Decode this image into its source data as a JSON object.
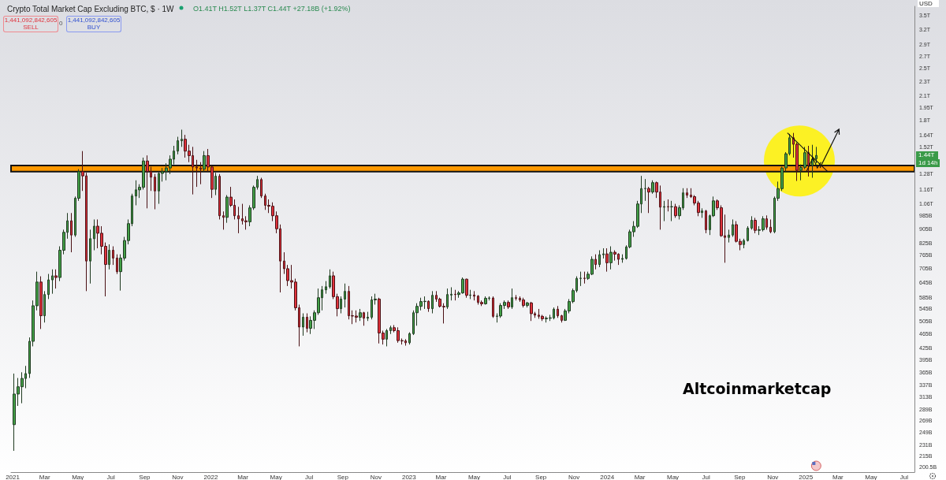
{
  "chart_data": {
    "type": "candlestick",
    "title": "Crypto Total Market Cap Excluding BTC, $ · 1W",
    "subtitle": "O1.41T H1.52T L1.37T C1.44T +27.18B (+1.92%)",
    "log": true,
    "grid": false,
    "ylim": [
      194000000000.0,
      3700000000000.0
    ],
    "yticks": [
      {
        "value": 200500000000.0,
        "label": "200.5B"
      },
      {
        "value": 215000000000.0,
        "label": "215B"
      },
      {
        "value": 231000000000.0,
        "label": "231B"
      },
      {
        "value": 249000000000.0,
        "label": "249B"
      },
      {
        "value": 269000000000.0,
        "label": "269B"
      },
      {
        "value": 289000000000.0,
        "label": "289B"
      },
      {
        "value": 313000000000.0,
        "label": "313B"
      },
      {
        "value": 337000000000.0,
        "label": "337B"
      },
      {
        "value": 365000000000.0,
        "label": "365B"
      },
      {
        "value": 395000000000.0,
        "label": "395B"
      },
      {
        "value": 425000000000.0,
        "label": "425B"
      },
      {
        "value": 465000000000.0,
        "label": "465B"
      },
      {
        "value": 505000000000.0,
        "label": "505B"
      },
      {
        "value": 545000000000.0,
        "label": "545B"
      },
      {
        "value": 585000000000.0,
        "label": "585B"
      },
      {
        "value": 645000000000.0,
        "label": "645B"
      },
      {
        "value": 705000000000.0,
        "label": "705B"
      },
      {
        "value": 765000000000.0,
        "label": "765B"
      },
      {
        "value": 825000000000.0,
        "label": "825B"
      },
      {
        "value": 905000000000.0,
        "label": "905B"
      },
      {
        "value": 985000000000.0,
        "label": "985B"
      },
      {
        "value": 1060000000000.0,
        "label": "1.06T"
      },
      {
        "value": 1160000000000.0,
        "label": "1.16T"
      },
      {
        "value": 1280000000000.0,
        "label": "1.28T"
      },
      {
        "value": 1520000000000.0,
        "label": "1.52T"
      },
      {
        "value": 1640000000000.0,
        "label": "1.64T"
      },
      {
        "value": 1800000000000.0,
        "label": "1.8T"
      },
      {
        "value": 1950000000000.0,
        "label": "1.95T"
      },
      {
        "value": 2100000000000.0,
        "label": "2.1T"
      },
      {
        "value": 2300000000000.0,
        "label": "2.3T"
      },
      {
        "value": 2500000000000.0,
        "label": "2.5T"
      },
      {
        "value": 2700000000000.0,
        "label": "2.7T"
      },
      {
        "value": 2900000000000.0,
        "label": "2.9T"
      },
      {
        "value": 3200000000000.0,
        "label": "3.2T"
      },
      {
        "value": 3500000000000.0,
        "label": "3.5T"
      }
    ],
    "xlim": [
      "2020-12-29",
      "2025-07-20"
    ],
    "xticks": [
      {
        "value": "2021-01-01",
        "label": "2021"
      },
      {
        "value": "2021-03-01",
        "label": "Mar"
      },
      {
        "value": "2021-05-01",
        "label": "May"
      },
      {
        "value": "2021-07-01",
        "label": "Jul"
      },
      {
        "value": "2021-09-01",
        "label": "Sep"
      },
      {
        "value": "2021-11-01",
        "label": "Nov"
      },
      {
        "value": "2022-01-01",
        "label": "2022"
      },
      {
        "value": "2022-03-01",
        "label": "Mar"
      },
      {
        "value": "2022-05-01",
        "label": "May"
      },
      {
        "value": "2022-07-01",
        "label": "Jul"
      },
      {
        "value": "2022-09-01",
        "label": "Sep"
      },
      {
        "value": "2022-11-01",
        "label": "Nov"
      },
      {
        "value": "2023-01-01",
        "label": "2023"
      },
      {
        "value": "2023-03-01",
        "label": "Mar"
      },
      {
        "value": "2023-05-01",
        "label": "May"
      },
      {
        "value": "2023-07-01",
        "label": "Jul"
      },
      {
        "value": "2023-09-01",
        "label": "Sep"
      },
      {
        "value": "2023-11-01",
        "label": "Nov"
      },
      {
        "value": "2024-01-01",
        "label": "2024"
      },
      {
        "value": "2024-03-01",
        "label": "Mar"
      },
      {
        "value": "2024-05-01",
        "label": "May"
      },
      {
        "value": "2024-07-01",
        "label": "Jul"
      },
      {
        "value": "2024-09-01",
        "label": "Sep"
      },
      {
        "value": "2024-11-01",
        "label": "Nov"
      },
      {
        "value": "2025-01-01",
        "label": "2025"
      },
      {
        "value": "2025-03-01",
        "label": "Mar"
      },
      {
        "value": "2025-05-01",
        "label": "May"
      },
      {
        "value": "2025-07-01",
        "label": "Jul"
      }
    ],
    "bands": [
      {
        "axis": "y",
        "from": 1300000000000.0,
        "to": 1350000000000.0,
        "color": "#ff9800"
      }
    ],
    "annotations": [
      "1,441,092,842,605",
      "SELL",
      "0",
      "1,441,092,842,605",
      "BUY",
      "USD",
      {
        "text": "1.44T",
        "y": 1440000000000.0
      },
      "1d 14h",
      "Altcoinmarketcap"
    ],
    "x": [
      "2021-01-04",
      "2021-01-11",
      "2021-01-18",
      "2021-01-25",
      "2021-02-01",
      "2021-02-08",
      "2021-02-15",
      "2021-02-22",
      "2021-03-01",
      "2021-03-08",
      "2021-03-15",
      "2021-03-22",
      "2021-03-29",
      "2021-04-05",
      "2021-04-12",
      "2021-04-19",
      "2021-04-26",
      "2021-05-03",
      "2021-05-10",
      "2021-05-17",
      "2021-05-24",
      "2021-05-31",
      "2021-06-07",
      "2021-06-14",
      "2021-06-21",
      "2021-06-28",
      "2021-07-05",
      "2021-07-12",
      "2021-07-19",
      "2021-07-26",
      "2021-08-02",
      "2021-08-09",
      "2021-08-16",
      "2021-08-23",
      "2021-08-30",
      "2021-09-06",
      "2021-09-13",
      "2021-09-20",
      "2021-09-27",
      "2021-10-04",
      "2021-10-11",
      "2021-10-18",
      "2021-10-25",
      "2021-11-01",
      "2021-11-08",
      "2021-11-15",
      "2021-11-22",
      "2021-11-29",
      "2021-12-06",
      "2021-12-13",
      "2021-12-20",
      "2021-12-27",
      "2022-01-03",
      "2022-01-10",
      "2022-01-17",
      "2022-01-24",
      "2022-01-31",
      "2022-02-07",
      "2022-02-14",
      "2022-02-21",
      "2022-02-28",
      "2022-03-07",
      "2022-03-14",
      "2022-03-21",
      "2022-03-28",
      "2022-04-04",
      "2022-04-11",
      "2022-04-18",
      "2022-04-25",
      "2022-05-02",
      "2022-05-09",
      "2022-05-16",
      "2022-05-23",
      "2022-05-30",
      "2022-06-06",
      "2022-06-13",
      "2022-06-20",
      "2022-06-27",
      "2022-07-04",
      "2022-07-11",
      "2022-07-18",
      "2022-07-25",
      "2022-08-01",
      "2022-08-08",
      "2022-08-15",
      "2022-08-22",
      "2022-08-29",
      "2022-09-05",
      "2022-09-12",
      "2022-09-19",
      "2022-09-26",
      "2022-10-03",
      "2022-10-10",
      "2022-10-17",
      "2022-10-24",
      "2022-10-31",
      "2022-11-07",
      "2022-11-14",
      "2022-11-21",
      "2022-11-28",
      "2022-12-05",
      "2022-12-12",
      "2022-12-19",
      "2022-12-26",
      "2023-01-02",
      "2023-01-09",
      "2023-01-16",
      "2023-01-23",
      "2023-01-30",
      "2023-02-06",
      "2023-02-13",
      "2023-02-20",
      "2023-02-27",
      "2023-03-06",
      "2023-03-13",
      "2023-03-20",
      "2023-03-27",
      "2023-04-03",
      "2023-04-10",
      "2023-04-17",
      "2023-04-24",
      "2023-05-01",
      "2023-05-08",
      "2023-05-15",
      "2023-05-22",
      "2023-05-29",
      "2023-06-05",
      "2023-06-12",
      "2023-06-19",
      "2023-06-26",
      "2023-07-03",
      "2023-07-10",
      "2023-07-17",
      "2023-07-24",
      "2023-07-31",
      "2023-08-07",
      "2023-08-14",
      "2023-08-21",
      "2023-08-28",
      "2023-09-04",
      "2023-09-11",
      "2023-09-18",
      "2023-09-25",
      "2023-10-02",
      "2023-10-09",
      "2023-10-16",
      "2023-10-23",
      "2023-10-30",
      "2023-11-06",
      "2023-11-13",
      "2023-11-20",
      "2023-11-27",
      "2023-12-04",
      "2023-12-11",
      "2023-12-18",
      "2023-12-25",
      "2024-01-01",
      "2024-01-08",
      "2024-01-15",
      "2024-01-22",
      "2024-01-29",
      "2024-02-05",
      "2024-02-12",
      "2024-02-19",
      "2024-02-26",
      "2024-03-04",
      "2024-03-11",
      "2024-03-18",
      "2024-03-25",
      "2024-04-01",
      "2024-04-08",
      "2024-04-15",
      "2024-04-22",
      "2024-04-29",
      "2024-05-06",
      "2024-05-13",
      "2024-05-20",
      "2024-05-27",
      "2024-06-03",
      "2024-06-10",
      "2024-06-17",
      "2024-06-24",
      "2024-07-01",
      "2024-07-08",
      "2024-07-15",
      "2024-07-22",
      "2024-07-29",
      "2024-08-05",
      "2024-08-12",
      "2024-08-19",
      "2024-08-26",
      "2024-09-02",
      "2024-09-09",
      "2024-09-16",
      "2024-09-23",
      "2024-09-30",
      "2024-10-07",
      "2024-10-14",
      "2024-10-21",
      "2024-10-28",
      "2024-11-04",
      "2024-11-11",
      "2024-11-18",
      "2024-11-25",
      "2024-12-02",
      "2024-12-09",
      "2024-12-16",
      "2024-12-23",
      "2024-12-30",
      "2025-01-06",
      "2025-01-13",
      "2025-01-20"
    ],
    "ohlc": [
      [
        262000000000.0,
        362000000000.0,
        222000000000.0,
        318000000000.0
      ],
      [
        318000000000.0,
        352000000000.0,
        295000000000.0,
        333000000000.0
      ],
      [
        333000000000.0,
        365000000000.0,
        300000000000.0,
        351000000000.0
      ],
      [
        351000000000.0,
        380000000000.0,
        330000000000.0,
        362000000000.0
      ],
      [
        362000000000.0,
        455000000000.0,
        352000000000.0,
        444000000000.0
      ],
      [
        444000000000.0,
        575000000000.0,
        430000000000.0,
        556000000000.0
      ],
      [
        556000000000.0,
        690000000000.0,
        540000000000.0,
        646000000000.0
      ],
      [
        646000000000.0,
        670000000000.0,
        480000000000.0,
        522000000000.0
      ],
      [
        522000000000.0,
        610000000000.0,
        500000000000.0,
        597000000000.0
      ],
      [
        597000000000.0,
        680000000000.0,
        580000000000.0,
        655000000000.0
      ],
      [
        655000000000.0,
        700000000000.0,
        600000000000.0,
        672000000000.0
      ],
      [
        672000000000.0,
        700000000000.0,
        620000000000.0,
        665000000000.0
      ],
      [
        665000000000.0,
        810000000000.0,
        650000000000.0,
        790000000000.0
      ],
      [
        790000000000.0,
        900000000000.0,
        770000000000.0,
        885000000000.0
      ],
      [
        885000000000.0,
        1000000000000.0,
        850000000000.0,
        952000000000.0
      ],
      [
        952000000000.0,
        1000000000000.0,
        780000000000.0,
        870000000000.0
      ],
      [
        870000000000.0,
        1110000000000.0,
        860000000000.0,
        1098000000000.0
      ],
      [
        1098000000000.0,
        1320000000000.0,
        1080000000000.0,
        1300000000000.0
      ],
      [
        1300000000000.0,
        1480000000000.0,
        1150000000000.0,
        1265000000000.0
      ],
      [
        1265000000000.0,
        1290000000000.0,
        610000000000.0,
        738000000000.0
      ],
      [
        738000000000.0,
        900000000000.0,
        640000000000.0,
        850000000000.0
      ],
      [
        850000000000.0,
        960000000000.0,
        790000000000.0,
        920000000000.0
      ],
      [
        920000000000.0,
        960000000000.0,
        800000000000.0,
        880000000000.0
      ],
      [
        880000000000.0,
        920000000000.0,
        770000000000.0,
        810000000000.0
      ],
      [
        810000000000.0,
        830000000000.0,
        590000000000.0,
        722000000000.0
      ],
      [
        722000000000.0,
        820000000000.0,
        700000000000.0,
        790000000000.0
      ],
      [
        790000000000.0,
        810000000000.0,
        720000000000.0,
        752000000000.0
      ],
      [
        752000000000.0,
        770000000000.0,
        680000000000.0,
        690000000000.0
      ],
      [
        690000000000.0,
        770000000000.0,
        612000000000.0,
        752000000000.0
      ],
      [
        752000000000.0,
        860000000000.0,
        740000000000.0,
        840000000000.0
      ],
      [
        840000000000.0,
        960000000000.0,
        820000000000.0,
        935000000000.0
      ],
      [
        935000000000.0,
        1130000000000.0,
        920000000000.0,
        1114000000000.0
      ],
      [
        1114000000000.0,
        1230000000000.0,
        1050000000000.0,
        1158000000000.0
      ],
      [
        1158000000000.0,
        1200000000000.0,
        1100000000000.0,
        1177000000000.0
      ],
      [
        1177000000000.0,
        1420000000000.0,
        1160000000000.0,
        1390000000000.0
      ],
      [
        1390000000000.0,
        1440000000000.0,
        1030000000000.0,
        1300000000000.0
      ],
      [
        1300000000000.0,
        1340000000000.0,
        1150000000000.0,
        1255000000000.0
      ],
      [
        1255000000000.0,
        1280000000000.0,
        1024000000000.0,
        1150000000000.0
      ],
      [
        1150000000000.0,
        1300000000000.0,
        1060000000000.0,
        1285000000000.0
      ],
      [
        1285000000000.0,
        1330000000000.0,
        1220000000000.0,
        1300000000000.0
      ],
      [
        1300000000000.0,
        1370000000000.0,
        1230000000000.0,
        1330000000000.0
      ],
      [
        1330000000000.0,
        1440000000000.0,
        1280000000000.0,
        1406000000000.0
      ],
      [
        1406000000000.0,
        1530000000000.0,
        1360000000000.0,
        1480000000000.0
      ],
      [
        1480000000000.0,
        1620000000000.0,
        1450000000000.0,
        1580000000000.0
      ],
      [
        1580000000000.0,
        1695000000000.0,
        1520000000000.0,
        1595000000000.0
      ],
      [
        1595000000000.0,
        1640000000000.0,
        1420000000000.0,
        1480000000000.0
      ],
      [
        1480000000000.0,
        1540000000000.0,
        1380000000000.0,
        1438000000000.0
      ],
      [
        1438000000000.0,
        1520000000000.0,
        1125000000000.0,
        1338000000000.0
      ],
      [
        1338000000000.0,
        1400000000000.0,
        1180000000000.0,
        1330000000000.0
      ],
      [
        1330000000000.0,
        1380000000000.0,
        1200000000000.0,
        1320000000000.0
      ],
      [
        1320000000000.0,
        1480000000000.0,
        1300000000000.0,
        1438000000000.0
      ],
      [
        1438000000000.0,
        1500000000000.0,
        1300000000000.0,
        1338000000000.0
      ],
      [
        1338000000000.0,
        1350000000000.0,
        1100000000000.0,
        1162000000000.0
      ],
      [
        1162000000000.0,
        1290000000000.0,
        1120000000000.0,
        1262000000000.0
      ],
      [
        1262000000000.0,
        1280000000000.0,
        960000000000.0,
        983000000000.0
      ],
      [
        983000000000.0,
        1010000000000.0,
        900000000000.0,
        973000000000.0
      ],
      [
        973000000000.0,
        1120000000000.0,
        940000000000.0,
        1106000000000.0
      ],
      [
        1106000000000.0,
        1180000000000.0,
        1040000000000.0,
        1050000000000.0
      ],
      [
        1050000000000.0,
        1090000000000.0,
        960000000000.0,
        983000000000.0
      ],
      [
        983000000000.0,
        1040000000000.0,
        880000000000.0,
        964000000000.0
      ],
      [
        964000000000.0,
        1060000000000.0,
        930000000000.0,
        952000000000.0
      ],
      [
        952000000000.0,
        980000000000.0,
        900000000000.0,
        946000000000.0
      ],
      [
        946000000000.0,
        1050000000000.0,
        920000000000.0,
        1033000000000.0
      ],
      [
        1033000000000.0,
        1190000000000.0,
        1020000000000.0,
        1177000000000.0
      ],
      [
        1177000000000.0,
        1265000000000.0,
        1160000000000.0,
        1236000000000.0
      ],
      [
        1236000000000.0,
        1250000000000.0,
        1100000000000.0,
        1114000000000.0
      ],
      [
        1114000000000.0,
        1130000000000.0,
        1020000000000.0,
        1050000000000.0
      ],
      [
        1050000000000.0,
        1090000000000.0,
        1000000000000.0,
        1044000000000.0
      ],
      [
        1044000000000.0,
        1070000000000.0,
        950000000000.0,
        983000000000.0
      ],
      [
        983000000000.0,
        1010000000000.0,
        880000000000.0,
        905000000000.0
      ],
      [
        905000000000.0,
        930000000000.0,
        605000000000.0,
        738000000000.0
      ],
      [
        738000000000.0,
        780000000000.0,
        680000000000.0,
        703000000000.0
      ],
      [
        703000000000.0,
        720000000000.0,
        630000000000.0,
        652000000000.0
      ],
      [
        652000000000.0,
        720000000000.0,
        620000000000.0,
        646000000000.0
      ],
      [
        646000000000.0,
        660000000000.0,
        540000000000.0,
        549000000000.0
      ],
      [
        549000000000.0,
        560000000000.0,
        430000000000.0,
        486000000000.0
      ],
      [
        486000000000.0,
        530000000000.0,
        460000000000.0,
        517000000000.0
      ],
      [
        517000000000.0,
        530000000000.0,
        470000000000.0,
        482000000000.0
      ],
      [
        482000000000.0,
        520000000000.0,
        465000000000.0,
        507000000000.0
      ],
      [
        507000000000.0,
        540000000000.0,
        480000000000.0,
        532000000000.0
      ],
      [
        532000000000.0,
        620000000000.0,
        525000000000.0,
        585000000000.0
      ],
      [
        585000000000.0,
        630000000000.0,
        540000000000.0,
        615000000000.0
      ],
      [
        615000000000.0,
        650000000000.0,
        600000000000.0,
        627000000000.0
      ],
      [
        627000000000.0,
        700000000000.0,
        620000000000.0,
        672000000000.0
      ],
      [
        672000000000.0,
        690000000000.0,
        580000000000.0,
        589000000000.0
      ],
      [
        589000000000.0,
        600000000000.0,
        520000000000.0,
        546000000000.0
      ],
      [
        546000000000.0,
        590000000000.0,
        530000000000.0,
        580000000000.0
      ],
      [
        580000000000.0,
        640000000000.0,
        550000000000.0,
        609000000000.0
      ],
      [
        609000000000.0,
        630000000000.0,
        510000000000.0,
        522000000000.0
      ],
      [
        522000000000.0,
        540000000000.0,
        495000000000.0,
        521000000000.0
      ],
      [
        521000000000.0,
        540000000000.0,
        500000000000.0,
        517000000000.0
      ],
      [
        517000000000.0,
        545000000000.0,
        505000000000.0,
        532000000000.0
      ],
      [
        532000000000.0,
        535000000000.0,
        490000000000.0,
        514000000000.0
      ],
      [
        514000000000.0,
        535000000000.0,
        505000000000.0,
        517000000000.0
      ],
      [
        517000000000.0,
        590000000000.0,
        510000000000.0,
        577000000000.0
      ],
      [
        577000000000.0,
        600000000000.0,
        560000000000.0,
        580000000000.0
      ],
      [
        580000000000.0,
        585000000000.0,
        438000000000.0,
        468000000000.0
      ],
      [
        468000000000.0,
        475000000000.0,
        435000000000.0,
        450000000000.0
      ],
      [
        450000000000.0,
        480000000000.0,
        430000000000.0,
        475000000000.0
      ],
      [
        475000000000.0,
        490000000000.0,
        465000000000.0,
        484000000000.0
      ],
      [
        484000000000.0,
        492000000000.0,
        470000000000.0,
        475000000000.0
      ],
      [
        475000000000.0,
        485000000000.0,
        440000000000.0,
        446000000000.0
      ],
      [
        446000000000.0,
        452000000000.0,
        435000000000.0,
        445000000000.0
      ],
      [
        445000000000.0,
        450000000000.0,
        432000000000.0,
        440000000000.0
      ],
      [
        440000000000.0,
        470000000000.0,
        435000000000.0,
        466000000000.0
      ],
      [
        466000000000.0,
        540000000000.0,
        462000000000.0,
        532000000000.0
      ],
      [
        532000000000.0,
        565000000000.0,
        490000000000.0,
        554000000000.0
      ],
      [
        554000000000.0,
        585000000000.0,
        540000000000.0,
        571000000000.0
      ],
      [
        571000000000.0,
        590000000000.0,
        545000000000.0,
        572000000000.0
      ],
      [
        572000000000.0,
        575000000000.0,
        535000000000.0,
        546000000000.0
      ],
      [
        546000000000.0,
        610000000000.0,
        530000000000.0,
        594000000000.0
      ],
      [
        594000000000.0,
        610000000000.0,
        570000000000.0,
        580000000000.0
      ],
      [
        580000000000.0,
        585000000000.0,
        550000000000.0,
        554000000000.0
      ],
      [
        554000000000.0,
        565000000000.0,
        497000000000.0,
        552000000000.0
      ],
      [
        552000000000.0,
        620000000000.0,
        545000000000.0,
        597000000000.0
      ],
      [
        595000000000.0,
        625000000000.0,
        575000000000.0,
        598000000000.0
      ],
      [
        598000000000.0,
        615000000000.0,
        575000000000.0,
        597000000000.0
      ],
      [
        597000000000.0,
        610000000000.0,
        585000000000.0,
        603000000000.0
      ],
      [
        603000000000.0,
        665000000000.0,
        600000000000.0,
        658000000000.0
      ],
      [
        658000000000.0,
        660000000000.0,
        585000000000.0,
        594000000000.0
      ],
      [
        594000000000.0,
        615000000000.0,
        580000000000.0,
        595000000000.0
      ],
      [
        595000000000.0,
        610000000000.0,
        575000000000.0,
        591000000000.0
      ],
      [
        591000000000.0,
        595000000000.0,
        560000000000.0,
        568000000000.0
      ],
      [
        568000000000.0,
        575000000000.0,
        555000000000.0,
        563000000000.0
      ],
      [
        563000000000.0,
        590000000000.0,
        560000000000.0,
        583000000000.0
      ],
      [
        583000000000.0,
        590000000000.0,
        575000000000.0,
        584000000000.0
      ],
      [
        584000000000.0,
        590000000000.0,
        515000000000.0,
        520000000000.0
      ],
      [
        520000000000.0,
        530000000000.0,
        500000000000.0,
        521000000000.0
      ],
      [
        521000000000.0,
        565000000000.0,
        515000000000.0,
        557000000000.0
      ],
      [
        557000000000.0,
        575000000000.0,
        545000000000.0,
        568000000000.0
      ],
      [
        568000000000.0,
        575000000000.0,
        545000000000.0,
        552000000000.0
      ],
      [
        552000000000.0,
        620000000000.0,
        545000000000.0,
        585000000000.0
      ],
      [
        585000000000.0,
        595000000000.0,
        575000000000.0,
        583000000000.0
      ],
      [
        583000000000.0,
        590000000000.0,
        570000000000.0,
        577000000000.0
      ],
      [
        577000000000.0,
        585000000000.0,
        550000000000.0,
        557000000000.0
      ],
      [
        557000000000.0,
        570000000000.0,
        550000000000.0,
        566000000000.0
      ],
      [
        566000000000.0,
        570000000000.0,
        505000000000.0,
        529000000000.0
      ],
      [
        529000000000.0,
        535000000000.0,
        515000000000.0,
        524000000000.0
      ],
      [
        524000000000.0,
        545000000000.0,
        512000000000.0,
        520000000000.0
      ],
      [
        520000000000.0,
        525000000000.0,
        505000000000.0,
        512000000000.0
      ],
      [
        512000000000.0,
        520000000000.0,
        500000000000.0,
        514000000000.0
      ],
      [
        514000000000.0,
        525000000000.0,
        505000000000.0,
        515000000000.0
      ],
      [
        515000000000.0,
        550000000000.0,
        510000000000.0,
        544000000000.0
      ],
      [
        544000000000.0,
        555000000000.0,
        515000000000.0,
        522000000000.0
      ],
      [
        522000000000.0,
        525000000000.0,
        500000000000.0,
        507000000000.0
      ],
      [
        507000000000.0,
        545000000000.0,
        505000000000.0,
        538000000000.0
      ],
      [
        538000000000.0,
        580000000000.0,
        530000000000.0,
        571000000000.0
      ],
      [
        571000000000.0,
        620000000000.0,
        565000000000.0,
        612000000000.0
      ],
      [
        612000000000.0,
        670000000000.0,
        605000000000.0,
        661000000000.0
      ],
      [
        661000000000.0,
        690000000000.0,
        630000000000.0,
        662000000000.0
      ],
      [
        662000000000.0,
        690000000000.0,
        640000000000.0,
        661000000000.0
      ],
      [
        661000000000.0,
        690000000000.0,
        655000000000.0,
        679000000000.0
      ],
      [
        679000000000.0,
        760000000000.0,
        675000000000.0,
        746000000000.0
      ],
      [
        746000000000.0,
        770000000000.0,
        700000000000.0,
        722000000000.0
      ],
      [
        722000000000.0,
        790000000000.0,
        710000000000.0,
        768000000000.0
      ],
      [
        768000000000.0,
        800000000000.0,
        750000000000.0,
        772000000000.0
      ],
      [
        772000000000.0,
        800000000000.0,
        690000000000.0,
        730000000000.0
      ],
      [
        730000000000.0,
        810000000000.0,
        700000000000.0,
        780000000000.0
      ],
      [
        780000000000.0,
        790000000000.0,
        740000000000.0,
        771000000000.0
      ],
      [
        771000000000.0,
        775000000000.0,
        720000000000.0,
        746000000000.0
      ],
      [
        746000000000.0,
        770000000000.0,
        730000000000.0,
        750000000000.0
      ],
      [
        750000000000.0,
        815000000000.0,
        745000000000.0,
        807000000000.0
      ],
      [
        807000000000.0,
        900000000000.0,
        800000000000.0,
        888000000000.0
      ],
      [
        888000000000.0,
        950000000000.0,
        860000000000.0,
        919000000000.0
      ],
      [
        919000000000.0,
        1080000000000.0,
        910000000000.0,
        1059000000000.0
      ],
      [
        1059000000000.0,
        1265000000000.0,
        1000000000000.0,
        1167000000000.0
      ],
      [
        1167000000000.0,
        1240000000000.0,
        1080000000000.0,
        1168000000000.0
      ],
      [
        1168000000000.0,
        1180000000000.0,
        1000000000000.0,
        1142000000000.0
      ],
      [
        1142000000000.0,
        1230000000000.0,
        1130000000000.0,
        1212000000000.0
      ],
      [
        1212000000000.0,
        1220000000000.0,
        1100000000000.0,
        1142000000000.0
      ],
      [
        1142000000000.0,
        1190000000000.0,
        900000000000.0,
        1038000000000.0
      ],
      [
        1038000000000.0,
        1080000000000.0,
        950000000000.0,
        1041000000000.0
      ],
      [
        1041000000000.0,
        1090000000000.0,
        1010000000000.0,
        1040000000000.0
      ],
      [
        1040000000000.0,
        1080000000000.0,
        950000000000.0,
        1041000000000.0
      ],
      [
        1041000000000.0,
        1060000000000.0,
        970000000000.0,
        983000000000.0
      ],
      [
        983000000000.0,
        1050000000000.0,
        960000000000.0,
        1034000000000.0
      ],
      [
        1034000000000.0,
        1170000000000.0,
        1020000000000.0,
        1136000000000.0
      ],
      [
        1136000000000.0,
        1170000000000.0,
        1100000000000.0,
        1120000000000.0
      ],
      [
        1120000000000.0,
        1170000000000.0,
        1100000000000.0,
        1109000000000.0
      ],
      [
        1109000000000.0,
        1120000000000.0,
        1050000000000.0,
        1065000000000.0
      ],
      [
        1065000000000.0,
        1080000000000.0,
        980000000000.0,
        1003000000000.0
      ],
      [
        1003000000000.0,
        1030000000000.0,
        970000000000.0,
        1013000000000.0
      ],
      [
        1013000000000.0,
        1020000000000.0,
        880000000000.0,
        900000000000.0
      ],
      [
        900000000000.0,
        990000000000.0,
        870000000000.0,
        983000000000.0
      ],
      [
        983000000000.0,
        1110000000000.0,
        975000000000.0,
        1080000000000.0
      ],
      [
        1080000000000.0,
        1090000000000.0,
        1020000000000.0,
        1034000000000.0
      ],
      [
        1034000000000.0,
        1050000000000.0,
        860000000000.0,
        866000000000.0
      ],
      [
        866000000000.0,
        990000000000.0,
        730000000000.0,
        857000000000.0
      ],
      [
        857000000000.0,
        900000000000.0,
        830000000000.0,
        870000000000.0
      ],
      [
        870000000000.0,
        960000000000.0,
        860000000000.0,
        929000000000.0
      ],
      [
        929000000000.0,
        950000000000.0,
        830000000000.0,
        836000000000.0
      ],
      [
        836000000000.0,
        850000000000.0,
        790000000000.0,
        819000000000.0
      ],
      [
        819000000000.0,
        850000000000.0,
        800000000000.0,
        840000000000.0
      ],
      [
        840000000000.0,
        920000000000.0,
        835000000000.0,
        909000000000.0
      ],
      [
        909000000000.0,
        980000000000.0,
        900000000000.0,
        955000000000.0
      ],
      [
        955000000000.0,
        970000000000.0,
        880000000000.0,
        896000000000.0
      ],
      [
        896000000000.0,
        920000000000.0,
        870000000000.0,
        900000000000.0
      ],
      [
        900000000000.0,
        980000000000.0,
        890000000000.0,
        964000000000.0
      ],
      [
        964000000000.0,
        985000000000.0,
        900000000000.0,
        914000000000.0
      ],
      [
        914000000000.0,
        960000000000.0,
        880000000000.0,
        888000000000.0
      ],
      [
        888000000000.0,
        1110000000000.0,
        880000000000.0,
        1098000000000.0
      ],
      [
        1098000000000.0,
        1220000000000.0,
        1080000000000.0,
        1167000000000.0
      ],
      [
        1167000000000.0,
        1340000000000.0,
        1150000000000.0,
        1330000000000.0
      ],
      [
        1330000000000.0,
        1470000000000.0,
        1300000000000.0,
        1455000000000.0
      ],
      [
        1455000000000.0,
        1650000000000.0,
        1440000000000.0,
        1610000000000.0
      ],
      [
        1610000000000.0,
        1660000000000.0,
        1420000000000.0,
        1545000000000.0
      ],
      [
        1545000000000.0,
        1560000000000.0,
        1225000000000.0,
        1310000000000.0
      ],
      [
        1310000000000.0,
        1360000000000.0,
        1230000000000.0,
        1335000000000.0
      ],
      [
        1335000000000.0,
        1520000000000.0,
        1320000000000.0,
        1465000000000.0
      ],
      [
        1465000000000.0,
        1530000000000.0,
        1260000000000.0,
        1350000000000.0
      ],
      [
        1350000000000.0,
        1540000000000.0,
        1250000000000.0,
        1406000000000.0
      ],
      [
        1410000000000.0,
        1520000000000.0,
        1370000000000.0,
        1440000000000.0
      ]
    ]
  }
}
